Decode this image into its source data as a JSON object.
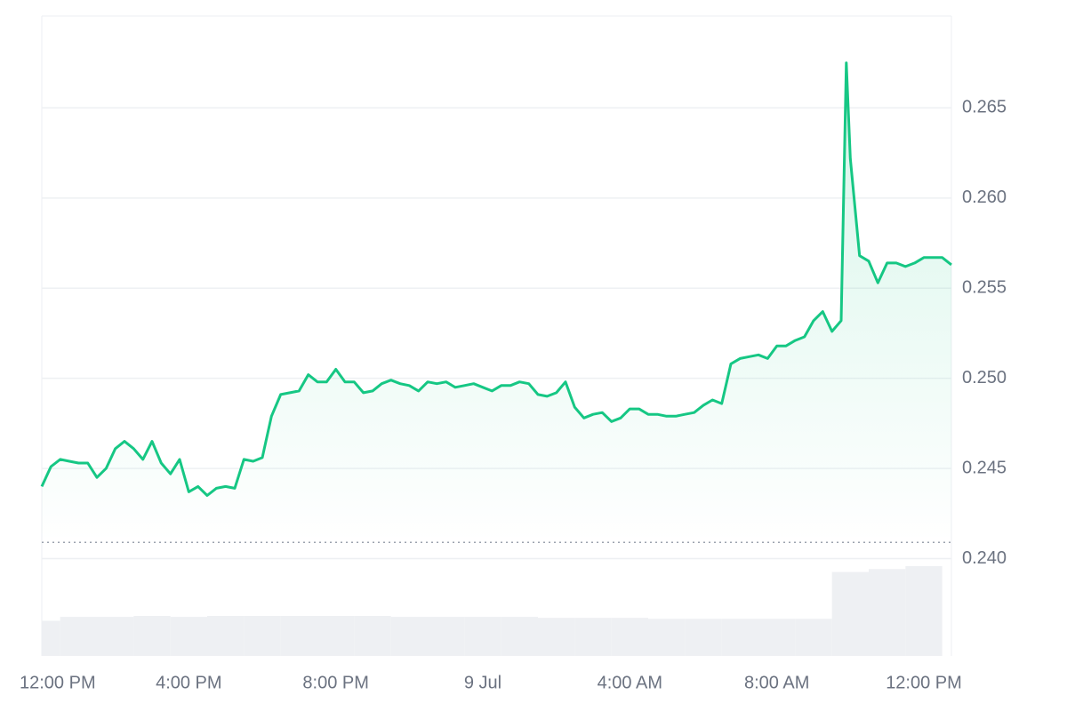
{
  "chart_data": {
    "type": "line",
    "x": [
      0,
      0.25,
      0.5,
      0.75,
      1,
      1.25,
      1.5,
      1.75,
      2,
      2.25,
      2.5,
      2.75,
      3,
      3.25,
      3.5,
      3.75,
      4,
      4.25,
      4.5,
      4.75,
      5,
      5.25,
      5.5,
      5.75,
      6,
      6.25,
      6.5,
      6.75,
      7,
      7.25,
      7.5,
      7.75,
      8,
      8.25,
      8.5,
      8.75,
      9,
      9.25,
      9.5,
      9.75,
      10,
      10.25,
      10.5,
      10.75,
      11,
      11.25,
      11.5,
      11.75,
      12,
      12.25,
      12.5,
      12.75,
      13,
      13.25,
      13.5,
      13.75,
      14,
      14.25,
      14.5,
      14.75,
      15,
      15.25,
      15.5,
      15.75,
      16,
      16.25,
      16.5,
      16.75,
      17,
      17.25,
      17.5,
      17.75,
      18,
      18.25,
      18.5,
      18.75,
      19,
      19.25,
      19.5,
      19.75,
      20,
      20.25,
      20.5,
      20.75,
      21,
      21.25,
      21.5,
      21.75,
      21.89,
      22,
      22.25,
      22.5,
      22.75,
      23,
      23.25,
      23.5,
      23.75,
      24,
      24.25,
      24.5,
      24.75
    ],
    "series": [
      {
        "color": "#16c784",
        "values": [
          0.244,
          0.2451,
          0.2455,
          0.2454,
          0.2453,
          0.2453,
          0.2445,
          0.245,
          0.2461,
          0.2465,
          0.2461,
          0.2455,
          0.2465,
          0.2453,
          0.2447,
          0.2455,
          0.2437,
          0.244,
          0.2435,
          0.2439,
          0.244,
          0.2439,
          0.2455,
          0.2454,
          0.2456,
          0.2479,
          0.2491,
          0.2492,
          0.2493,
          0.2502,
          0.2498,
          0.2498,
          0.2505,
          0.2498,
          0.2498,
          0.2492,
          0.2493,
          0.2497,
          0.2499,
          0.2497,
          0.2496,
          0.2493,
          0.2498,
          0.2497,
          0.2498,
          0.2495,
          0.2496,
          0.2497,
          0.2495,
          0.2493,
          0.2496,
          0.2496,
          0.2498,
          0.2497,
          0.2491,
          0.249,
          0.2492,
          0.2498,
          0.2484,
          0.2478,
          0.248,
          0.2481,
          0.2476,
          0.2478,
          0.2483,
          0.2483,
          0.248,
          0.248,
          0.2479,
          0.2479,
          0.248,
          0.2481,
          0.2485,
          0.2488,
          0.2486,
          0.2508,
          0.2511,
          0.2512,
          0.2513,
          0.2511,
          0.2518,
          0.2518,
          0.2521,
          0.2523,
          0.2532,
          0.2537,
          0.2526,
          0.2532,
          0.2675,
          0.2622,
          0.2568,
          0.2565,
          0.2553,
          0.2564,
          0.2564,
          0.2562,
          0.2564,
          0.2567,
          0.2567,
          0.2567,
          0.2563
        ]
      }
    ],
    "reference_line": 0.2409,
    "volume": {
      "x": [
        0,
        1,
        2,
        3,
        4,
        5,
        6,
        7,
        8,
        9,
        10,
        11,
        12,
        13,
        14,
        15,
        16,
        17,
        18,
        19,
        20,
        21,
        22,
        23,
        24
      ],
      "values": [
        36,
        40,
        40,
        41,
        40,
        41,
        41,
        41,
        41,
        41,
        40,
        40,
        40,
        40,
        39,
        39,
        39,
        38,
        38,
        38,
        38,
        38,
        86,
        89,
        92
      ]
    },
    "xlim": [
      0,
      24.75
    ],
    "ylim": [
      0.2346,
      0.2701
    ],
    "xticks": [
      {
        "value": 0,
        "label": "12:00 PM"
      },
      {
        "value": 4,
        "label": "4:00 PM"
      },
      {
        "value": 8,
        "label": "8:00 PM"
      },
      {
        "value": 12,
        "label": "9 Jul"
      },
      {
        "value": 16,
        "label": "4:00 AM"
      },
      {
        "value": 20,
        "label": "8:00 AM"
      },
      {
        "value": 24,
        "label": "12:00 PM"
      }
    ],
    "yticks": [
      {
        "value": 0.24,
        "label": "0.240"
      },
      0.245,
      {
        "value": 0.25,
        "label": "0.250"
      },
      0.255,
      {
        "value": 0.26,
        "label": "0.260"
      },
      0.265
    ],
    "grid": true
  }
}
